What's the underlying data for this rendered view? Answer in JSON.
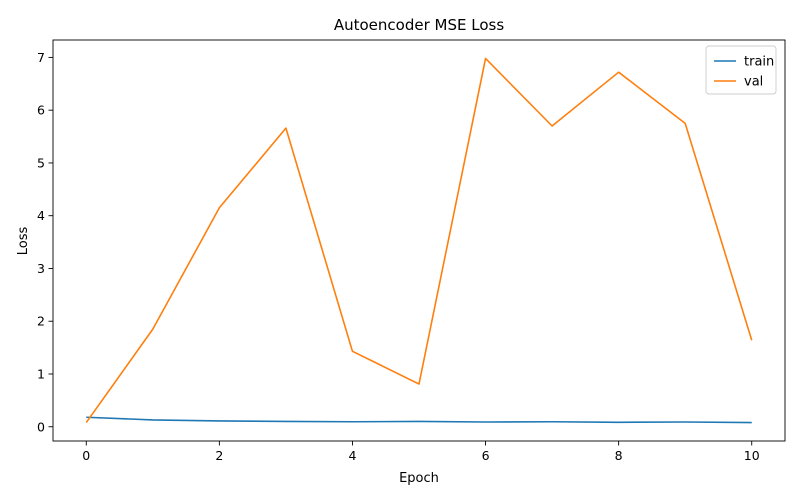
{
  "chart_data": {
    "type": "line",
    "title": "Autoencoder MSE Loss",
    "xlabel": "Epoch",
    "ylabel": "Loss",
    "x": [
      0,
      1,
      2,
      3,
      4,
      5,
      6,
      7,
      8,
      9,
      10
    ],
    "xlim": [
      -0.5,
      10.5
    ],
    "ylim": [
      -0.27,
      7.33
    ],
    "xticks": [
      0,
      2,
      4,
      6,
      8,
      10
    ],
    "yticks": [
      0,
      1,
      2,
      3,
      4,
      5,
      6,
      7
    ],
    "grid": false,
    "legend_position": "top-right",
    "series": [
      {
        "name": "train",
        "color": "#1f77b4",
        "values": [
          0.18,
          0.13,
          0.11,
          0.1,
          0.095,
          0.1,
          0.09,
          0.095,
          0.085,
          0.09,
          0.08
        ]
      },
      {
        "name": "val",
        "color": "#ff7f0e",
        "values": [
          0.08,
          1.85,
          4.15,
          5.66,
          1.43,
          0.81,
          6.98,
          5.7,
          6.72,
          5.75,
          1.64
        ]
      }
    ]
  }
}
